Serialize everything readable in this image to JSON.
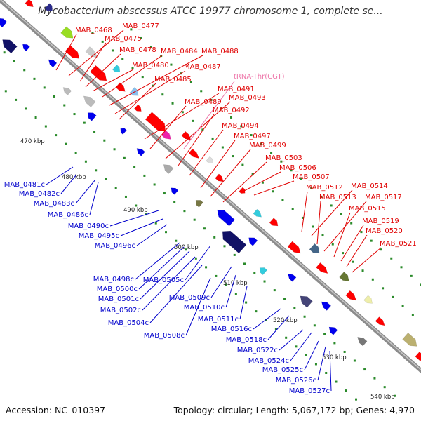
{
  "title": "Mycobacterium abscessus ATCC 19977 chromosome 1, complete se...",
  "footer": {
    "accession": "Accession: NC_010397",
    "summary": "Topology: circular; Length: 5,067,172 bp; Genes: 4,970"
  },
  "colors": {
    "forward_label": "#e00000",
    "reverse_label": "#0000cc",
    "rna_label": "#ee77aa",
    "backbone": "#8c8c8c",
    "tick_dot": "#2a8a2a"
  },
  "ticks": [
    "470 kbp",
    "480 kbp",
    "490 kbp",
    "500 kbp",
    "510 kbp",
    "520 kbp",
    "530 kbp",
    "540 kbp"
  ],
  "forward_genes": [
    "MAB_0468",
    "MAB_0477",
    "MAB_0475",
    "MAB_0478",
    "MAB_0484",
    "MAB_0488",
    "MAB_0480",
    "MAB_0487",
    "MAB_0485",
    "MAB_0491",
    "MAB_0489",
    "MAB_0493",
    "MAB_0492",
    "MAB_0494",
    "MAB_0497",
    "MAB_0499",
    "MAB_0503",
    "MAB_0506",
    "MAB_0507",
    "MAB_0512",
    "MAB_0514",
    "MAB_0513",
    "MAB_0517",
    "MAB_0515",
    "MAB_0519",
    "MAB_0520",
    "MAB_0521"
  ],
  "rna_genes": [
    "tRNA-Thr(CGT)"
  ],
  "reverse_genes": [
    "MAB_0481c",
    "MAB_0482c",
    "MAB_0483c",
    "MAB_0486c",
    "MAB_0490c",
    "MAB_0495c",
    "MAB_0496c",
    "MAB_0498c",
    "MAB_0500c",
    "MAB_0501c",
    "MAB_0505c",
    "MAB_0502c",
    "MAB_0509c",
    "MAB_0504c",
    "MAB_0510c",
    "MAB_0508c",
    "MAB_0511c",
    "MAB_0516c",
    "MAB_0518c",
    "MAB_0522c",
    "MAB_0524c",
    "MAB_0525c",
    "MAB_0526c",
    "MAB_0527c"
  ]
}
